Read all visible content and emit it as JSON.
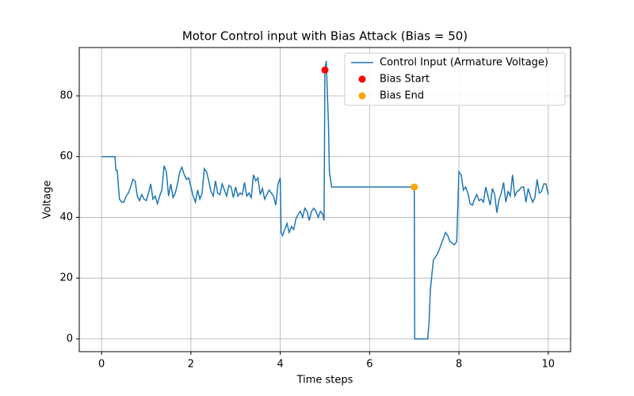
{
  "chart_data": {
    "type": "line",
    "title": "Motor Control input with Bias Attack (Bias = 50)",
    "x_label": "Time steps",
    "y_label": "Voltage",
    "xlim": [
      -0.5,
      10.5
    ],
    "ylim": [
      -4.2,
      95.9
    ],
    "xticks": [
      0,
      2,
      4,
      6,
      8,
      10
    ],
    "yticks": [
      0,
      20,
      40,
      60,
      80
    ],
    "grid": true,
    "legend": "upper right",
    "series": [
      {
        "name": "Control Input (Armature Voltage)",
        "type": "line",
        "color": "#1f77b4",
        "x": [
          0,
          0.1,
          0.2,
          0.3,
          0.32,
          0.35,
          0.4,
          0.45,
          0.5,
          0.55,
          0.6,
          0.65,
          0.7,
          0.75,
          0.8,
          0.85,
          0.9,
          0.95,
          1.0,
          1.05,
          1.1,
          1.15,
          1.2,
          1.25,
          1.3,
          1.35,
          1.4,
          1.45,
          1.5,
          1.55,
          1.6,
          1.65,
          1.7,
          1.75,
          1.8,
          1.85,
          1.9,
          1.95,
          2.0,
          2.05,
          2.1,
          2.15,
          2.2,
          2.25,
          2.3,
          2.35,
          2.4,
          2.45,
          2.5,
          2.55,
          2.6,
          2.65,
          2.7,
          2.75,
          2.8,
          2.85,
          2.9,
          2.95,
          3.0,
          3.05,
          3.1,
          3.15,
          3.2,
          3.25,
          3.3,
          3.35,
          3.4,
          3.45,
          3.5,
          3.55,
          3.6,
          3.65,
          3.7,
          3.75,
          3.8,
          3.85,
          3.9,
          3.95,
          4.0,
          4.02,
          4.05,
          4.1,
          4.15,
          4.2,
          4.25,
          4.3,
          4.35,
          4.4,
          4.45,
          4.5,
          4.55,
          4.6,
          4.65,
          4.7,
          4.75,
          4.8,
          4.85,
          4.9,
          4.95,
          4.98,
          5.0,
          5.03,
          5.05,
          5.08,
          5.1,
          5.15,
          7.0,
          7.01,
          7.3,
          7.33,
          7.36,
          7.4,
          7.43,
          7.5,
          7.55,
          7.6,
          7.65,
          7.7,
          7.75,
          7.8,
          7.85,
          7.9,
          7.95,
          8.0,
          8.05,
          8.1,
          8.15,
          8.2,
          8.25,
          8.3,
          8.35,
          8.4,
          8.45,
          8.5,
          8.55,
          8.6,
          8.65,
          8.7,
          8.75,
          8.8,
          8.85,
          8.9,
          8.95,
          9.0,
          9.05,
          9.1,
          9.15,
          9.2,
          9.25,
          9.3,
          9.35,
          9.4,
          9.45,
          9.5,
          9.55,
          9.6,
          9.65,
          9.7,
          9.75,
          9.8,
          9.85,
          9.9,
          9.95,
          10.0
        ],
        "values": [
          60,
          60,
          60,
          60,
          55.5,
          55.5,
          46,
          45,
          45,
          47,
          48,
          50,
          52.5,
          52,
          47,
          45.5,
          47.5,
          46,
          45.5,
          48,
          51,
          46,
          47,
          44.5,
          47,
          49,
          57,
          55,
          47,
          51,
          46.5,
          48,
          51,
          55,
          56.5,
          54,
          52.5,
          53,
          50,
          47,
          45,
          49,
          46,
          48,
          56,
          55,
          52,
          48.5,
          47,
          52,
          48,
          47.5,
          51,
          49,
          47,
          50.5,
          50,
          46.5,
          50,
          47,
          48,
          47.5,
          51.5,
          47,
          48,
          46.5,
          54,
          52,
          53,
          47.5,
          49.5,
          46,
          47.5,
          49,
          48,
          47,
          44,
          51,
          53,
          35,
          34,
          36,
          38,
          35,
          37,
          36,
          39.5,
          41,
          42,
          40,
          43,
          42,
          39,
          42,
          43,
          42,
          40,
          42,
          41,
          39,
          88.5,
          91.5,
          83,
          70,
          55,
          50,
          50,
          0,
          0,
          5,
          16,
          22,
          26,
          27.5,
          29,
          31,
          33,
          35,
          34,
          32,
          31.5,
          31,
          32,
          55,
          54,
          49,
          50,
          48,
          44.5,
          44,
          46,
          47.5,
          45.5,
          46,
          45,
          50,
          47,
          44,
          49.5,
          47.5,
          41.5,
          46,
          48,
          51.5,
          45,
          48.5,
          47,
          54,
          47,
          48.5,
          49,
          50,
          50,
          45,
          49.5,
          47,
          45,
          46.5,
          52.5,
          48,
          48.5,
          51,
          51,
          47.5
        ]
      },
      {
        "name": "Bias Start",
        "type": "scatter",
        "color": "#ff0000",
        "x": [
          5
        ],
        "values": [
          88.5
        ]
      },
      {
        "name": "Bias End",
        "type": "scatter",
        "color": "#ffa500",
        "x": [
          7
        ],
        "values": [
          50
        ]
      }
    ]
  }
}
